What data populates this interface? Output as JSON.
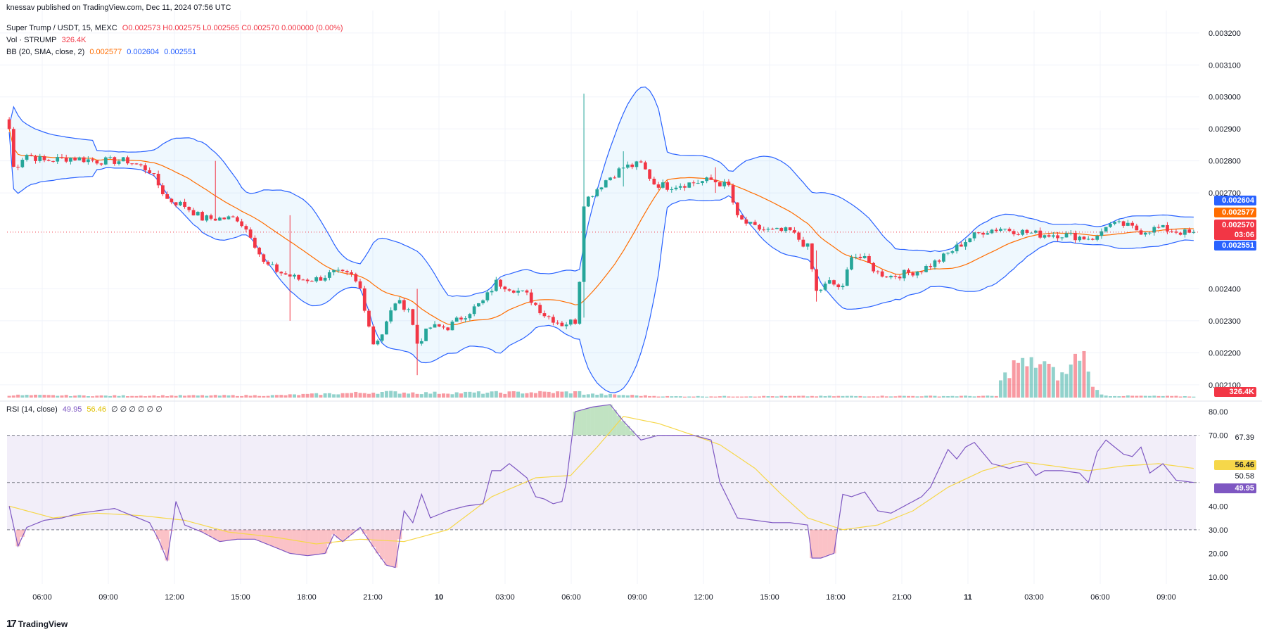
{
  "publisher_line": "knessav published on TradingView.com, Dec 11, 2024 07:56 UTC",
  "legend": {
    "symbol": "Super Trump / USDT, 15, MEXC",
    "ohlc": "O0.002573 H0.002575 L0.002565 C0.002570 0.000000 (0.00%)",
    "vol_label": "Vol · STRUMP",
    "vol_value": "326.4K",
    "bb_label": "BB (20, SMA, close, 2)",
    "bb_basis": "0.002577",
    "bb_upper": "0.002604",
    "bb_lower": "0.002551",
    "rsi_label": "RSI (14, close)",
    "rsi_value": "49.95",
    "rsi_ma": "56.46",
    "rsi_extra": "∅ ∅ ∅ ∅ ∅ ∅"
  },
  "price_tags": {
    "upper": "0.002604",
    "basis": "0.002577",
    "last": "0.002570",
    "countdown": "03:06",
    "lower": "0.002551",
    "volume": "326.4K",
    "rsi_ma": "56.46",
    "rsi": "49.95",
    "rsi_upper_marker": "67.39",
    "rsi_lower_marker": "50.58"
  },
  "colors": {
    "up": "#26a69a",
    "down": "#f23645",
    "bb_band": "#2962ff",
    "bb_basis": "#ff6d00",
    "rsi_line": "#7e57c2",
    "rsi_ma": "#f6d74a"
  },
  "footer_brand": "TradingView",
  "chart_data": {
    "type": "candlestick",
    "price_axis": {
      "ticks": [
        "0.003200",
        "0.003100",
        "0.003000",
        "0.002900",
        "0.002800",
        "0.002700",
        "0.002400",
        "0.002300",
        "0.002200",
        "0.002100"
      ],
      "range": [
        0.00206,
        0.00327
      ]
    },
    "time_axis": {
      "ticks": [
        "06:00",
        "09:00",
        "12:00",
        "15:00",
        "18:00",
        "21:00",
        "10",
        "03:00",
        "06:00",
        "09:00",
        "12:00",
        "15:00",
        "18:00",
        "21:00",
        "11",
        "03:00",
        "06:00",
        "09:00"
      ]
    },
    "rsi_axis": {
      "ticks": [
        "80.00",
        "70.00",
        "40.00",
        "30.00",
        "20.00",
        "10.00"
      ],
      "range": [
        7,
        83
      ],
      "bands": [
        30,
        70
      ],
      "midline": 50
    },
    "price_anchors": [
      [
        0,
        0.0029
      ],
      [
        1,
        0.00278
      ],
      [
        2,
        0.00279
      ],
      [
        3,
        0.00281
      ],
      [
        4,
        0.00282
      ],
      [
        8,
        0.0028
      ],
      [
        14,
        0.00281
      ],
      [
        20,
        0.0028
      ],
      [
        27,
        0.0028
      ],
      [
        32,
        0.00277
      ],
      [
        36,
        0.00268
      ],
      [
        40,
        0.00266
      ],
      [
        44,
        0.00262
      ],
      [
        48,
        0.00262
      ],
      [
        52,
        0.00262
      ],
      [
        55,
        0.00257
      ],
      [
        58,
        0.00248
      ],
      [
        62,
        0.00245
      ],
      [
        66,
        0.00243
      ],
      [
        70,
        0.00243
      ],
      [
        74,
        0.00245
      ],
      [
        78,
        0.00244
      ],
      [
        80,
        0.0024
      ],
      [
        83,
        0.00223
      ],
      [
        85,
        0.00226
      ],
      [
        88,
        0.00236
      ],
      [
        91,
        0.00234
      ],
      [
        93,
        0.00223
      ],
      [
        96,
        0.00228
      ],
      [
        100,
        0.00228
      ],
      [
        104,
        0.00232
      ],
      [
        108,
        0.00236
      ],
      [
        111,
        0.00242
      ],
      [
        115,
        0.0024
      ],
      [
        118,
        0.00238
      ],
      [
        122,
        0.00232
      ],
      [
        126,
        0.00229
      ],
      [
        129,
        0.0023
      ],
      [
        130,
        0.00243
      ],
      [
        131,
        0.00267
      ],
      [
        133,
        0.0027
      ],
      [
        136,
        0.00274
      ],
      [
        140,
        0.00278
      ],
      [
        144,
        0.00279
      ],
      [
        147,
        0.00273
      ],
      [
        150,
        0.00272
      ],
      [
        155,
        0.00273
      ],
      [
        160,
        0.00274
      ],
      [
        164,
        0.00272
      ],
      [
        166,
        0.00262
      ],
      [
        170,
        0.00259
      ],
      [
        174,
        0.00258
      ],
      [
        178,
        0.00258
      ],
      [
        182,
        0.00253
      ],
      [
        184,
        0.00239
      ],
      [
        187,
        0.00242
      ],
      [
        190,
        0.0024
      ],
      [
        192,
        0.00251
      ],
      [
        195,
        0.00249
      ],
      [
        198,
        0.00245
      ],
      [
        201,
        0.00244
      ],
      [
        205,
        0.00245
      ],
      [
        208,
        0.00246
      ],
      [
        212,
        0.00249
      ],
      [
        216,
        0.00253
      ],
      [
        219,
        0.00256
      ],
      [
        222,
        0.00258
      ],
      [
        226,
        0.00259
      ],
      [
        230,
        0.00258
      ],
      [
        235,
        0.00257
      ],
      [
        240,
        0.00257
      ],
      [
        245,
        0.00256
      ],
      [
        248,
        0.00256
      ],
      [
        250,
        0.0026
      ],
      [
        254,
        0.0026
      ],
      [
        258,
        0.00258
      ],
      [
        262,
        0.00259
      ],
      [
        266,
        0.00258
      ],
      [
        270,
        0.00257
      ]
    ],
    "spikes": [
      {
        "bar": 64,
        "high": 0.00263,
        "low": 0.0023
      },
      {
        "bar": 93,
        "high": 0.0024,
        "low": 0.00213
      },
      {
        "bar": 131,
        "high": 0.00301,
        "low": 0.00231
      },
      {
        "bar": 140,
        "high": 0.00283,
        "low": 0.00272
      },
      {
        "bar": 47,
        "high": 0.0028,
        "low": 0.00262
      },
      {
        "bar": 161,
        "high": 0.00278,
        "low": 0.0027
      },
      {
        "bar": 184,
        "high": 0.00252,
        "low": 0.00236
      }
    ],
    "volume": {
      "range": [
        0,
        1500000
      ],
      "anchors": [
        [
          0,
          80000
        ],
        [
          20,
          60000
        ],
        [
          60,
          70000
        ],
        [
          86,
          180000
        ],
        [
          95,
          150000
        ],
        [
          130,
          180000
        ],
        [
          131,
          120000
        ],
        [
          150,
          40000
        ],
        [
          200,
          50000
        ],
        [
          225,
          50000
        ],
        [
          226,
          500000
        ],
        [
          228,
          900000
        ],
        [
          230,
          1200000
        ],
        [
          232,
          1000000
        ],
        [
          234,
          1150000
        ],
        [
          236,
          1100000
        ],
        [
          238,
          800000
        ],
        [
          240,
          700000
        ],
        [
          242,
          1000000
        ],
        [
          244,
          1500000
        ],
        [
          246,
          1200000
        ],
        [
          247,
          300000
        ],
        [
          250,
          60000
        ],
        [
          270,
          40000
        ]
      ]
    },
    "rsi_anchors": [
      [
        0,
        40
      ],
      [
        2,
        23
      ],
      [
        4,
        31
      ],
      [
        8,
        34
      ],
      [
        12,
        35
      ],
      [
        16,
        37
      ],
      [
        20,
        38
      ],
      [
        24,
        39
      ],
      [
        28,
        36
      ],
      [
        32,
        33
      ],
      [
        34,
        26
      ],
      [
        36,
        17
      ],
      [
        38,
        42
      ],
      [
        40,
        32
      ],
      [
        44,
        29
      ],
      [
        48,
        25
      ],
      [
        52,
        26
      ],
      [
        56,
        26
      ],
      [
        60,
        23
      ],
      [
        64,
        20
      ],
      [
        68,
        19
      ],
      [
        72,
        20
      ],
      [
        74,
        28
      ],
      [
        76,
        25
      ],
      [
        80,
        31
      ],
      [
        84,
        20
      ],
      [
        86,
        15
      ],
      [
        88,
        14
      ],
      [
        90,
        38
      ],
      [
        92,
        33
      ],
      [
        94,
        45
      ],
      [
        96,
        35
      ],
      [
        100,
        38
      ],
      [
        104,
        40
      ],
      [
        108,
        41
      ],
      [
        110,
        55
      ],
      [
        112,
        55
      ],
      [
        114,
        58
      ],
      [
        118,
        52
      ],
      [
        120,
        44
      ],
      [
        122,
        43
      ],
      [
        124,
        41
      ],
      [
        126,
        42
      ],
      [
        127,
        50
      ],
      [
        129,
        80
      ],
      [
        133,
        82
      ],
      [
        137,
        83
      ],
      [
        140,
        76
      ],
      [
        144,
        68
      ],
      [
        148,
        70
      ],
      [
        152,
        70
      ],
      [
        156,
        70
      ],
      [
        160,
        68
      ],
      [
        162,
        50
      ],
      [
        166,
        35
      ],
      [
        170,
        34
      ],
      [
        174,
        33
      ],
      [
        178,
        33
      ],
      [
        182,
        32
      ],
      [
        183,
        18
      ],
      [
        185,
        18
      ],
      [
        188,
        20
      ],
      [
        190,
        45
      ],
      [
        192,
        44
      ],
      [
        195,
        46
      ],
      [
        198,
        38
      ],
      [
        201,
        37
      ],
      [
        205,
        41
      ],
      [
        208,
        44
      ],
      [
        210,
        48
      ],
      [
        214,
        64
      ],
      [
        216,
        60
      ],
      [
        218,
        65
      ],
      [
        220,
        67
      ],
      [
        224,
        58
      ],
      [
        228,
        56
      ],
      [
        232,
        58
      ],
      [
        234,
        53
      ],
      [
        236,
        55
      ],
      [
        240,
        55
      ],
      [
        244,
        54
      ],
      [
        246,
        50
      ],
      [
        248,
        63
      ],
      [
        250,
        68
      ],
      [
        254,
        62
      ],
      [
        256,
        61
      ],
      [
        258,
        65
      ],
      [
        260,
        54
      ],
      [
        263,
        58
      ],
      [
        266,
        51
      ],
      [
        270,
        50
      ]
    ],
    "rsi_ma_anchors": [
      [
        0,
        40
      ],
      [
        10,
        35
      ],
      [
        20,
        37
      ],
      [
        30,
        36
      ],
      [
        40,
        34
      ],
      [
        50,
        29
      ],
      [
        60,
        27
      ],
      [
        70,
        24
      ],
      [
        80,
        26
      ],
      [
        90,
        25
      ],
      [
        100,
        30
      ],
      [
        110,
        44
      ],
      [
        120,
        52
      ],
      [
        128,
        53
      ],
      [
        134,
        65
      ],
      [
        140,
        78
      ],
      [
        148,
        75
      ],
      [
        156,
        70
      ],
      [
        162,
        66
      ],
      [
        170,
        56
      ],
      [
        176,
        45
      ],
      [
        182,
        35
      ],
      [
        190,
        30
      ],
      [
        198,
        32
      ],
      [
        206,
        38
      ],
      [
        214,
        48
      ],
      [
        222,
        55
      ],
      [
        230,
        59
      ],
      [
        238,
        57
      ],
      [
        246,
        55
      ],
      [
        254,
        57
      ],
      [
        262,
        58
      ],
      [
        270,
        56
      ]
    ]
  }
}
